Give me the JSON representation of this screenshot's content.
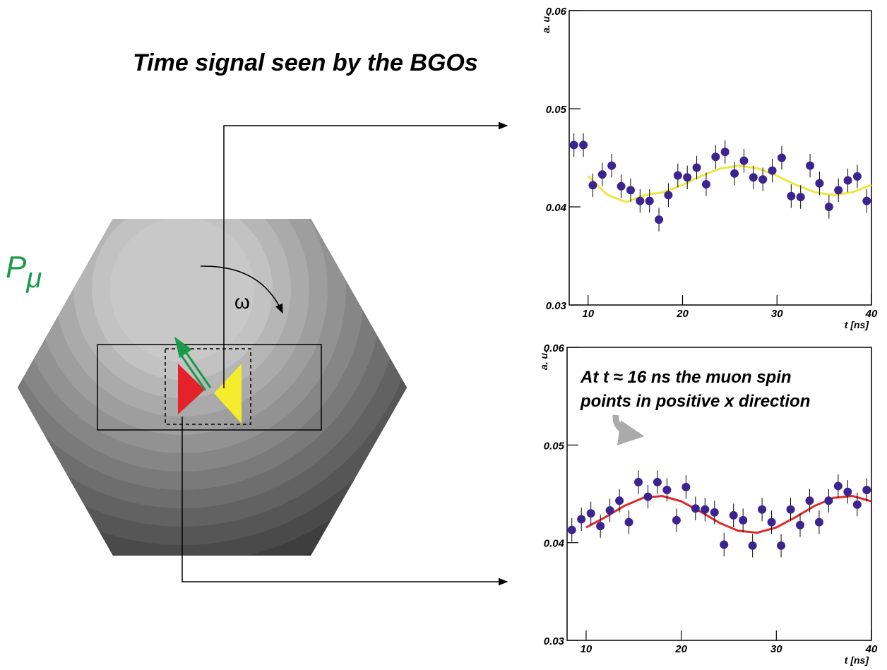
{
  "title": "Time signal seen by the BGOs",
  "polarization_label": "P",
  "polarization_subscript": "μ",
  "omega_label": "ω",
  "chart_data": [
    {
      "type": "scatter",
      "xlabel": "t [ns]",
      "ylabel": "a. u.",
      "xlim": [
        8,
        40
      ],
      "ylim": [
        0.03,
        0.06
      ],
      "xticks": [
        10,
        20,
        30,
        40
      ],
      "yticks": [
        0.03,
        0.04,
        0.05,
        0.06
      ],
      "x": [
        8.5,
        9.5,
        10.5,
        11.5,
        12.5,
        13.5,
        14.5,
        15.5,
        16.5,
        17.5,
        18.5,
        19.5,
        20.5,
        21.5,
        22.5,
        23.5,
        24.5,
        25.5,
        26.5,
        27.5,
        28.5,
        29.5,
        30.5,
        31.5,
        32.5,
        33.5,
        34.5,
        35.5,
        36.5,
        37.5,
        38.5,
        39.5
      ],
      "values": [
        0.0463,
        0.0463,
        0.0422,
        0.0433,
        0.0442,
        0.0421,
        0.0417,
        0.0406,
        0.0406,
        0.0387,
        0.0412,
        0.0432,
        0.043,
        0.044,
        0.0423,
        0.0451,
        0.0456,
        0.0434,
        0.0447,
        0.043,
        0.0428,
        0.0437,
        0.045,
        0.0411,
        0.041,
        0.0442,
        0.0424,
        0.04,
        0.0417,
        0.0427,
        0.0431,
        0.0406
      ],
      "errors": [
        0.0012,
        0.0012,
        0.0012,
        0.0012,
        0.0012,
        0.0012,
        0.0012,
        0.0012,
        0.0012,
        0.0012,
        0.0012,
        0.0012,
        0.0012,
        0.0012,
        0.0012,
        0.0012,
        0.0012,
        0.0012,
        0.0012,
        0.0012,
        0.0012,
        0.0012,
        0.0012,
        0.0012,
        0.0012,
        0.0012,
        0.0012,
        0.0012,
        0.0012,
        0.0012,
        0.0012,
        0.0012
      ],
      "color": "#3b2390",
      "fit": {
        "x": [
          10,
          12,
          14,
          16,
          18,
          20,
          22,
          24,
          26,
          28,
          30,
          32,
          34,
          36,
          38,
          40
        ],
        "values": [
          0.04316,
          0.04124,
          0.04049,
          0.0412,
          0.04149,
          0.04224,
          0.04316,
          0.04391,
          0.0442,
          0.04391,
          0.04316,
          0.04224,
          0.04149,
          0.0412,
          0.04149,
          0.04224
        ],
        "color": "#ece640"
      }
    },
    {
      "type": "scatter",
      "xlabel": "t [ns]",
      "ylabel": "a. u.",
      "xlim": [
        8,
        40
      ],
      "ylim": [
        0.03,
        0.06
      ],
      "xticks": [
        10,
        20,
        30,
        40
      ],
      "yticks": [
        0.03,
        0.04,
        0.05,
        0.06
      ],
      "annotation": [
        "At t ≈ 16 ns the muon spin",
        "points in positive x direction"
      ],
      "x": [
        8.5,
        9.5,
        10.5,
        11.5,
        12.5,
        13.5,
        14.5,
        15.5,
        16.5,
        17.5,
        18.5,
        19.5,
        20.5,
        21.5,
        22.5,
        23.5,
        24.5,
        25.5,
        26.5,
        27.5,
        28.5,
        29.5,
        30.5,
        31.5,
        32.5,
        33.5,
        34.5,
        35.5,
        36.5,
        37.5,
        38.5,
        39.5
      ],
      "values": [
        0.0413,
        0.0424,
        0.043,
        0.0417,
        0.0433,
        0.0443,
        0.0421,
        0.0462,
        0.0447,
        0.0462,
        0.0454,
        0.0423,
        0.0457,
        0.0435,
        0.0434,
        0.0431,
        0.0398,
        0.0428,
        0.0423,
        0.0397,
        0.0434,
        0.0421,
        0.0397,
        0.0434,
        0.0418,
        0.0443,
        0.0421,
        0.0443,
        0.0458,
        0.0452,
        0.0439,
        0.0454
      ],
      "errors": [
        0.0012,
        0.0012,
        0.0012,
        0.0012,
        0.0012,
        0.0012,
        0.0012,
        0.0012,
        0.0012,
        0.0012,
        0.0012,
        0.0012,
        0.0012,
        0.0012,
        0.0012,
        0.0012,
        0.0012,
        0.0012,
        0.0012,
        0.0012,
        0.0012,
        0.0012,
        0.0012,
        0.0012,
        0.0012,
        0.0012,
        0.0012,
        0.0012,
        0.0012,
        0.0012,
        0.0012,
        0.0012
      ],
      "color": "#3b2390",
      "fit": {
        "x": [
          10,
          12,
          14,
          16,
          18,
          20,
          22,
          24,
          26,
          28,
          30,
          32,
          34,
          36,
          38,
          40
        ],
        "values": [
          0.04156,
          0.0426,
          0.04376,
          0.04459,
          0.04478,
          0.04424,
          0.0432,
          0.04204,
          0.04121,
          0.04102,
          0.04156,
          0.0426,
          0.04376,
          0.04459,
          0.04478,
          0.04424
        ],
        "color": "#e0282a"
      }
    }
  ]
}
